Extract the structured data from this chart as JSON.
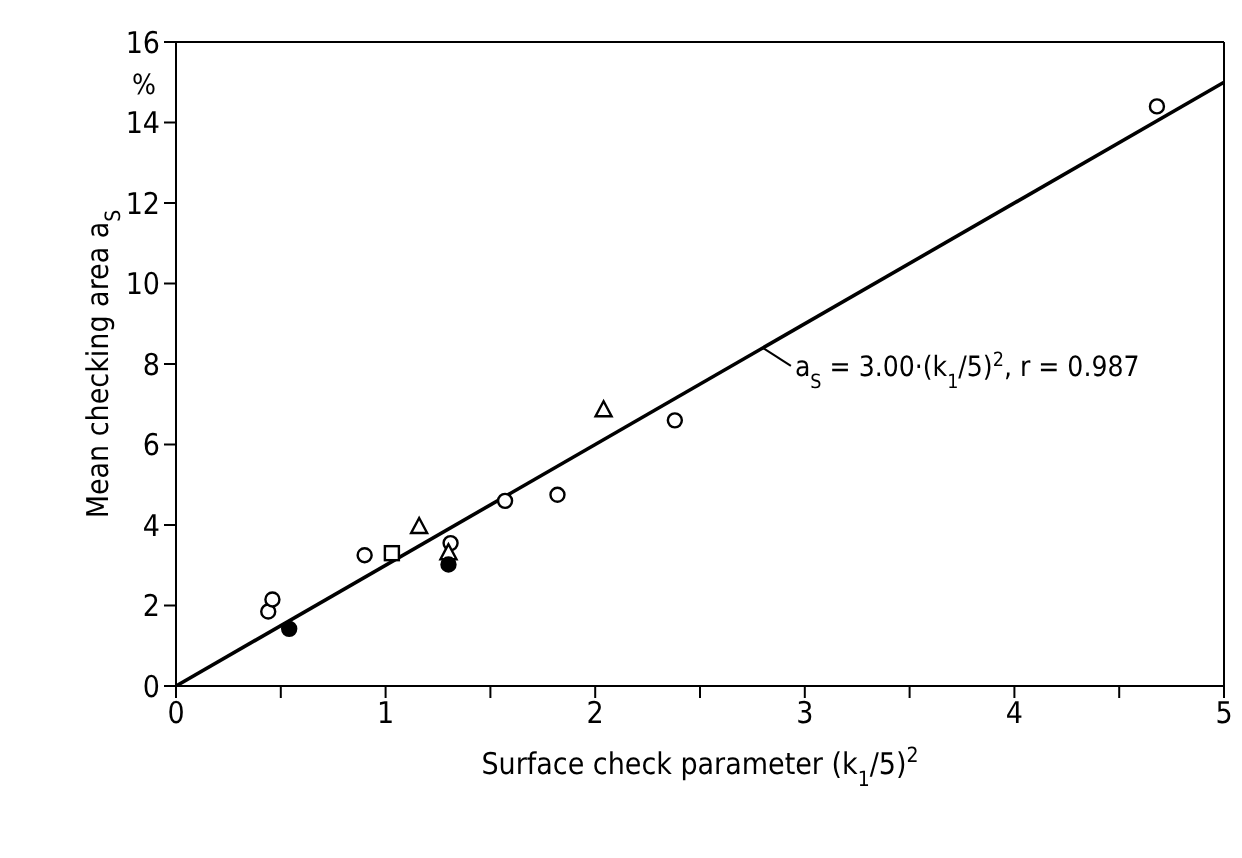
{
  "chart_data": {
    "type": "scatter",
    "xlabel": "Surface check parameter (k$_{1}$/5)$^{2}$",
    "ylabel": "Mean checking area a$_{S}$",
    "xlim": [
      0,
      5
    ],
    "ylim": [
      0,
      16
    ],
    "xticks": [
      0,
      {
        "value": 0.5,
        "label": null
      },
      1,
      {
        "value": 1.5,
        "label": null
      },
      2,
      {
        "value": 2.5,
        "label": null
      },
      3,
      {
        "value": 3.5,
        "label": null
      },
      4,
      {
        "value": 4.5,
        "label": null
      },
      5
    ],
    "yticks": [
      0,
      2,
      4,
      6,
      8,
      10,
      12,
      14,
      16
    ],
    "grid": false,
    "legend": false,
    "annotations": [
      "%",
      {
        "text": "a$_{S}$ = 3.00·(k$_{1}$/5)$^{2}$, r = 0.987",
        "x": 2.8,
        "y": 8.4
      }
    ],
    "series": [
      {
        "marker": "circle",
        "color": "#ffffff",
        "x": [
          0.44,
          0.46,
          0.9,
          1.31,
          1.57,
          1.82,
          2.38,
          4.68
        ],
        "values": [
          1.85,
          2.15,
          3.25,
          3.55,
          4.6,
          4.75,
          6.6,
          14.4
        ]
      },
      {
        "marker": "square",
        "color": "#ffffff",
        "x": [
          1.03
        ],
        "values": [
          3.3
        ]
      },
      {
        "marker": "triangle",
        "color": "#ffffff",
        "x": [
          1.16,
          2.04,
          1.3
        ],
        "values": [
          3.95,
          6.85,
          3.3
        ]
      },
      {
        "marker": "circle",
        "color": "#000000",
        "x": [
          0.54,
          1.3
        ],
        "values": [
          1.42,
          3.02
        ]
      },
      {
        "type": "line",
        "marker": "none",
        "color": "#000000",
        "x": [
          0,
          5
        ],
        "values": [
          0,
          15
        ]
      }
    ]
  }
}
